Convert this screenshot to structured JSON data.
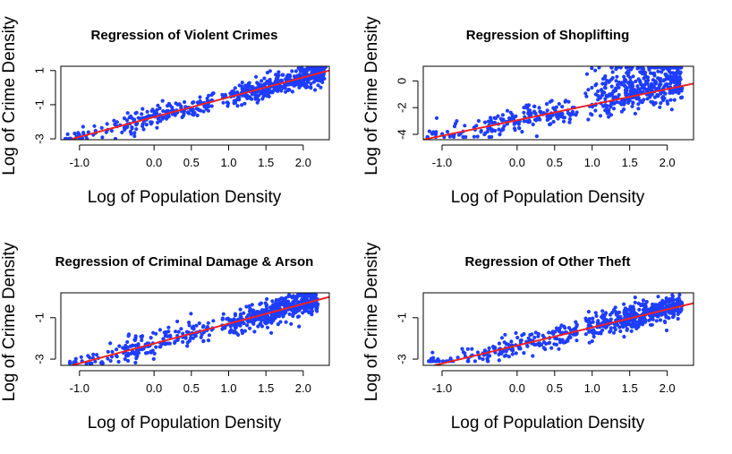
{
  "chart_data": [
    {
      "type": "scatter",
      "title": "Regression of Violent Crimes",
      "xlabel": "Log of Population Density",
      "ylabel": "Log of Crime Density",
      "xlim": [
        -1.25,
        2.35
      ],
      "ylim": [
        -3.05,
        1.25
      ],
      "xticks": [
        -1.0,
        0.0,
        0.5,
        1.0,
        1.5,
        2.0
      ],
      "xtick_labels": [
        "-1.0",
        "0.0",
        "0.5",
        "1.0",
        "1.5",
        "2.0"
      ],
      "yticks": [
        -3,
        -1,
        1
      ],
      "ytick_labels": [
        "-3",
        "-1",
        "1"
      ],
      "point_color": "#1f3dff",
      "line_color": "#ee2222",
      "regression": {
        "x": [
          -1.1,
          2.35
        ],
        "y": [
          -3.0,
          1.0
        ]
      },
      "points_summary": {
        "n": 620,
        "x_range": [
          -1.2,
          2.3
        ],
        "y_range": [
          -3.0,
          1.2
        ],
        "spread": 0.3
      }
    },
    {
      "type": "scatter",
      "title": "Regression of Shoplifting",
      "xlabel": "Log of Population Density",
      "ylabel": "Log of Crime Density",
      "xlim": [
        -1.25,
        2.35
      ],
      "ylim": [
        -4.4,
        1.1
      ],
      "xticks": [
        -1.0,
        0.0,
        0.5,
        1.0,
        1.5,
        2.0
      ],
      "xtick_labels": [
        "-1.0",
        "0.0",
        "0.5",
        "1.0",
        "1.5",
        "2.0"
      ],
      "yticks": [
        -4,
        -2,
        0
      ],
      "ytick_labels": [
        "-4",
        "-2",
        "0"
      ],
      "point_color": "#1f3dff",
      "line_color": "#ee2222",
      "regression": {
        "x": [
          -1.25,
          2.35
        ],
        "y": [
          -4.4,
          -0.2
        ]
      },
      "points_summary": {
        "n": 620,
        "x_range": [
          -1.2,
          2.2
        ],
        "y_range": [
          -4.2,
          1.0
        ],
        "spread": 0.5
      }
    },
    {
      "type": "scatter",
      "title": "Regression of Criminal Damage & Arson",
      "xlabel": "Log of Population Density",
      "ylabel": "Log of Crime Density",
      "xlim": [
        -1.25,
        2.35
      ],
      "ylim": [
        -3.3,
        0.2
      ],
      "xticks": [
        -1.0,
        0.0,
        0.5,
        1.0,
        1.5,
        2.0
      ],
      "xtick_labels": [
        "-1.0",
        "0.0",
        "0.5",
        "1.0",
        "1.5",
        "2.0"
      ],
      "yticks": [
        -3,
        -1
      ],
      "ytick_labels": [
        "-3",
        "-1"
      ],
      "point_color": "#1f3dff",
      "line_color": "#ee2222",
      "regression": {
        "x": [
          -1.1,
          2.35
        ],
        "y": [
          -3.3,
          0.0
        ]
      },
      "points_summary": {
        "n": 620,
        "x_range": [
          -1.2,
          2.2
        ],
        "y_range": [
          -3.2,
          0.1
        ],
        "spread": 0.3
      }
    },
    {
      "type": "scatter",
      "title": "Regression of Other Theft",
      "xlabel": "Log of Population Density",
      "ylabel": "Log of Crime Density",
      "xlim": [
        -1.25,
        2.35
      ],
      "ylim": [
        -3.3,
        0.2
      ],
      "xticks": [
        -1.0,
        0.0,
        0.5,
        1.0,
        1.5,
        2.0
      ],
      "xtick_labels": [
        "-1.0",
        "0.0",
        "0.5",
        "1.0",
        "1.5",
        "2.0"
      ],
      "yticks": [
        -3,
        -1
      ],
      "ytick_labels": [
        "-3",
        "-1"
      ],
      "point_color": "#1f3dff",
      "line_color": "#ee2222",
      "regression": {
        "x": [
          -1.1,
          2.35
        ],
        "y": [
          -3.3,
          -0.3
        ]
      },
      "points_summary": {
        "n": 620,
        "x_range": [
          -1.2,
          2.2
        ],
        "y_range": [
          -3.1,
          0.1
        ],
        "spread": 0.3
      }
    }
  ]
}
